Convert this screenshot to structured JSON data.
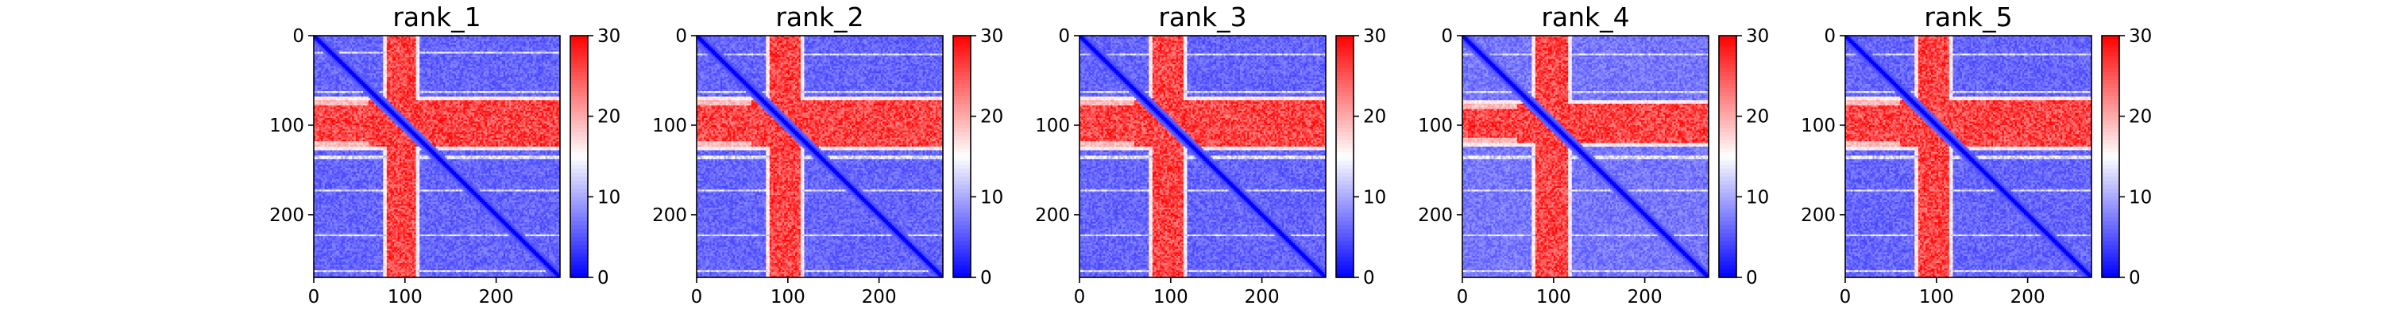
{
  "chart_data": [
    {
      "type": "heatmap",
      "title": "rank_1",
      "size": 270,
      "colormap": "bwr",
      "vmin": 0,
      "vmax": 30,
      "x_ticks": [
        0,
        100,
        200
      ],
      "y_ticks": [
        0,
        100,
        200
      ],
      "colorbar_ticks": [
        0,
        10,
        20,
        30
      ],
      "band": {
        "start": 75,
        "end": 120,
        "value": 27
      },
      "band_col": {
        "start": 80,
        "end": 110
      },
      "band_row": {
        "start": 72,
        "end": 122
      },
      "background_value": 4,
      "streak_rows": [
        18,
        62,
        135,
        172,
        222,
        262
      ],
      "ring_rows": [
        75,
        120
      ]
    },
    {
      "type": "heatmap",
      "title": "rank_2",
      "size": 270,
      "colormap": "bwr",
      "vmin": 0,
      "vmax": 30,
      "x_ticks": [
        0,
        100,
        200
      ],
      "y_ticks": [
        0,
        100,
        200
      ],
      "colorbar_ticks": [
        0,
        10,
        20,
        30
      ],
      "band_col": {
        "start": 80,
        "end": 112
      },
      "band_row": {
        "start": 72,
        "end": 122
      },
      "background_value": 4,
      "streak_rows": [
        20,
        62,
        135,
        172,
        222,
        262
      ],
      "ring_rows": [
        75,
        120
      ]
    },
    {
      "type": "heatmap",
      "title": "rank_3",
      "size": 270,
      "colormap": "bwr",
      "vmin": 0,
      "vmax": 30,
      "x_ticks": [
        0,
        100,
        200
      ],
      "y_ticks": [
        0,
        100,
        200
      ],
      "colorbar_ticks": [
        0,
        10,
        20,
        30
      ],
      "band_col": {
        "start": 80,
        "end": 112
      },
      "band_row": {
        "start": 72,
        "end": 122
      },
      "background_value": 4,
      "streak_rows": [
        20,
        62,
        135,
        172,
        222,
        262
      ],
      "ring_rows": [
        75,
        120
      ]
    },
    {
      "type": "heatmap",
      "title": "rank_4",
      "size": 270,
      "colormap": "bwr",
      "vmin": 0,
      "vmax": 30,
      "x_ticks": [
        0,
        100,
        200
      ],
      "y_ticks": [
        0,
        100,
        200
      ],
      "colorbar_ticks": [
        0,
        10,
        20,
        30
      ],
      "band_col": {
        "start": 80,
        "end": 115
      },
      "band_row": {
        "start": 75,
        "end": 118
      },
      "background_value": 5,
      "streak_rows": [
        20,
        62,
        135,
        172,
        222,
        262
      ],
      "ring_rows": [
        75,
        120
      ]
    },
    {
      "type": "heatmap",
      "title": "rank_5",
      "size": 270,
      "colormap": "bwr",
      "vmin": 0,
      "vmax": 30,
      "x_ticks": [
        0,
        100,
        200
      ],
      "y_ticks": [
        0,
        100,
        200
      ],
      "colorbar_ticks": [
        0,
        10,
        20,
        30
      ],
      "band_col": {
        "start": 80,
        "end": 112
      },
      "band_row": {
        "start": 72,
        "end": 122
      },
      "background_value": 4,
      "streak_rows": [
        20,
        62,
        135,
        172,
        222,
        262
      ],
      "ring_rows": [
        75,
        120
      ]
    }
  ]
}
